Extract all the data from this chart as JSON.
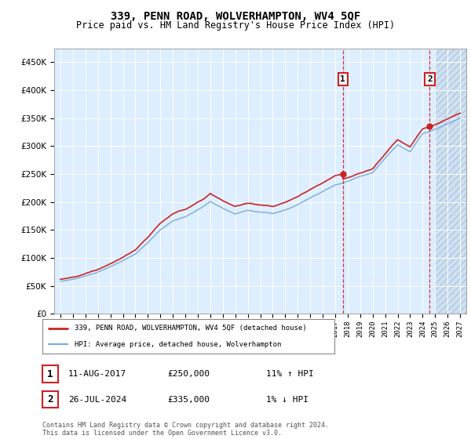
{
  "title": "339, PENN ROAD, WOLVERHAMPTON, WV4 5QF",
  "subtitle": "Price paid vs. HM Land Registry's House Price Index (HPI)",
  "legend_line1": "339, PENN ROAD, WOLVERHAMPTON, WV4 5QF (detached house)",
  "legend_line2": "HPI: Average price, detached house, Wolverhampton",
  "annotation1_date": "11-AUG-2017",
  "annotation1_price": "£250,000",
  "annotation1_hpi": "11% ↑ HPI",
  "annotation2_date": "26-JUL-2024",
  "annotation2_price": "£335,000",
  "annotation2_hpi": "1% ↓ HPI",
  "footer": "Contains HM Land Registry data © Crown copyright and database right 2024.\nThis data is licensed under the Open Government Licence v3.0.",
  "hpi_color": "#7aacd6",
  "price_color": "#cc2222",
  "vline_color": "#cc2222",
  "background_color": "#ffffff",
  "plot_bg_color": "#ddeeff",
  "ylim": [
    0,
    475000
  ],
  "yticks": [
    0,
    50000,
    100000,
    150000,
    200000,
    250000,
    300000,
    350000,
    400000,
    450000
  ],
  "sale1_year": 2017.62,
  "sale1_value": 250000,
  "sale2_year": 2024.57,
  "sale2_value": 335000,
  "xmin": 1994.5,
  "xmax": 2027.5,
  "hatch_start": 2025.0
}
